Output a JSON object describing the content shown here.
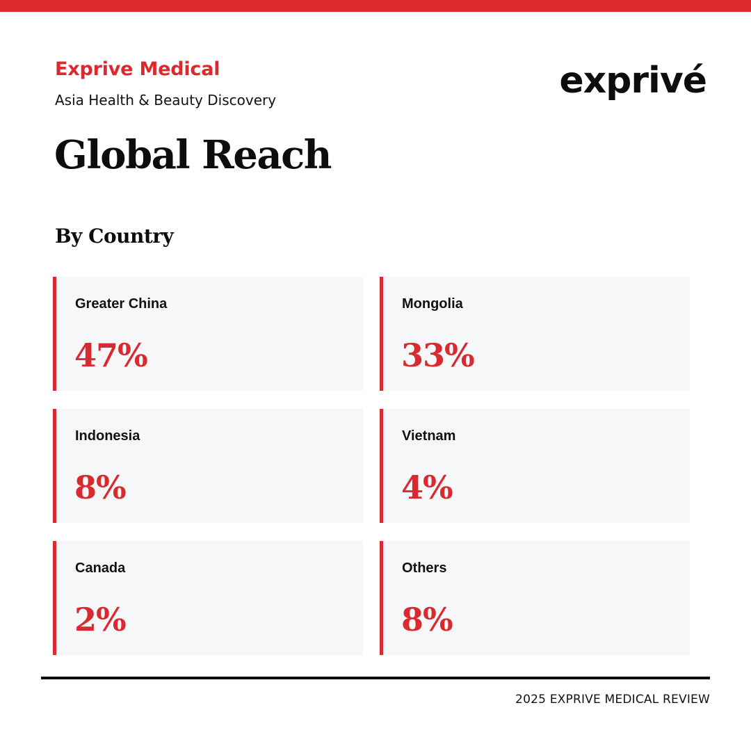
{
  "colors": {
    "accent": "#dd282e",
    "card_background": "#f6f7f9",
    "text": "#111111"
  },
  "header": {
    "brand_name": "Exprive Medical",
    "tagline": "Asia Health & Beauty Discovery",
    "logo_text": "exprivé"
  },
  "title": "Global Reach",
  "subtitle": "By Country",
  "cards": [
    {
      "label": "Greater China",
      "value": "47%"
    },
    {
      "label": "Mongolia",
      "value": "33%"
    },
    {
      "label": "Indonesia",
      "value": "8%"
    },
    {
      "label": "Vietnam",
      "value": "4%"
    },
    {
      "label": "Canada",
      "value": "2%"
    },
    {
      "label": "Others",
      "value": "8%"
    }
  ],
  "footer": "2025 EXPRIVE MEDICAL REVIEW"
}
